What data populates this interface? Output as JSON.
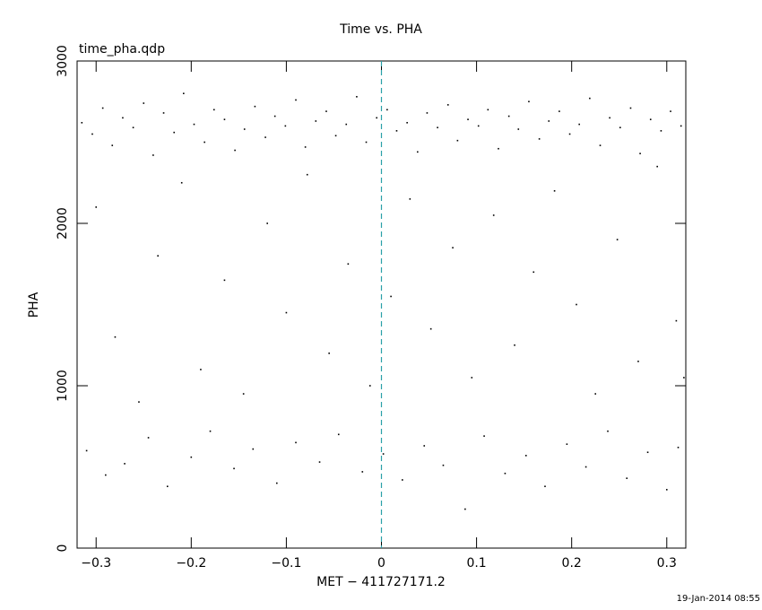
{
  "chart_data": {
    "type": "scatter",
    "title": "Time vs. PHA",
    "subtitle": "time_pha.qdp",
    "x_label": "MET − 411727171.2",
    "y_label": "PHA",
    "timestamp": "19-Jan-2014 08:55",
    "xlim": [
      -0.32,
      0.32
    ],
    "ylim": [
      0,
      3000
    ],
    "xticks": [
      {
        "value": -0.3,
        "label": "−0.3"
      },
      {
        "value": -0.2,
        "label": "−0.2"
      },
      {
        "value": -0.1,
        "label": "−0.1"
      },
      0,
      0.1,
      0.2,
      0.3
    ],
    "yticks": [
      0,
      1000,
      2000,
      3000
    ],
    "vline": {
      "x": 0,
      "color": "#2aa0a8"
    },
    "series": [
      {
        "color": "#000000",
        "x": [
          -0.315,
          -0.304,
          -0.293,
          -0.283,
          -0.272,
          -0.261,
          -0.25,
          -0.24,
          -0.229,
          -0.218,
          -0.208,
          -0.197,
          -0.186,
          -0.176,
          -0.165,
          -0.154,
          -0.144,
          -0.133,
          -0.122,
          -0.112,
          -0.101,
          -0.09,
          -0.08,
          -0.069,
          -0.058,
          -0.048,
          -0.037,
          -0.026,
          -0.016,
          -0.005,
          0.006,
          0.016,
          0.027,
          0.038,
          0.048,
          0.059,
          0.07,
          0.08,
          0.091,
          0.102,
          0.112,
          0.123,
          0.134,
          0.144,
          0.155,
          0.166,
          0.176,
          0.187,
          0.198,
          0.208,
          0.219,
          0.23,
          0.24,
          0.251,
          0.262,
          0.272,
          0.283,
          0.294,
          0.304,
          0.315,
          -0.3,
          -0.28,
          -0.255,
          -0.235,
          -0.21,
          -0.19,
          -0.165,
          -0.145,
          -0.12,
          -0.1,
          -0.078,
          -0.055,
          -0.035,
          -0.012,
          0.01,
          0.03,
          0.052,
          0.075,
          0.095,
          0.118,
          0.14,
          0.16,
          0.182,
          0.205,
          0.225,
          0.248,
          0.27,
          0.29,
          0.31,
          0.318,
          -0.31,
          -0.29,
          -0.27,
          -0.245,
          -0.225,
          -0.2,
          -0.18,
          -0.155,
          -0.135,
          -0.11,
          -0.09,
          -0.065,
          -0.045,
          -0.02,
          0.002,
          0.022,
          0.045,
          0.065,
          0.088,
          0.108,
          0.13,
          0.152,
          0.172,
          0.195,
          0.215,
          0.238,
          0.258,
          0.28,
          0.3,
          0.312
        ],
        "values": [
          2620,
          2550,
          2710,
          2480,
          2650,
          2590,
          2740,
          2420,
          2680,
          2560,
          2800,
          2610,
          2500,
          2700,
          2640,
          2450,
          2580,
          2720,
          2530,
          2660,
          2600,
          2760,
          2470,
          2630,
          2690,
          2540,
          2610,
          2780,
          2500,
          2650,
          2700,
          2570,
          2620,
          2440,
          2680,
          2590,
          2730,
          2510,
          2640,
          2600,
          2700,
          2460,
          2660,
          2580,
          2750,
          2520,
          2630,
          2690,
          2550,
          2610,
          2770,
          2480,
          2650,
          2590,
          2710,
          2430,
          2640,
          2570,
          2690,
          2600,
          2100,
          1300,
          900,
          1800,
          2250,
          1100,
          1650,
          950,
          2000,
          1450,
          2300,
          1200,
          1750,
          1000,
          1550,
          2150,
          1350,
          1850,
          1050,
          2050,
          1250,
          1700,
          2200,
          1500,
          950,
          1900,
          1150,
          2350,
          1400,
          1050,
          600,
          450,
          520,
          680,
          380,
          560,
          720,
          490,
          610,
          400,
          650,
          530,
          700,
          470,
          580,
          420,
          630,
          510,
          240,
          690,
          460,
          570,
          380,
          640,
          500,
          720,
          430,
          590,
          360,
          620
        ]
      }
    ]
  }
}
